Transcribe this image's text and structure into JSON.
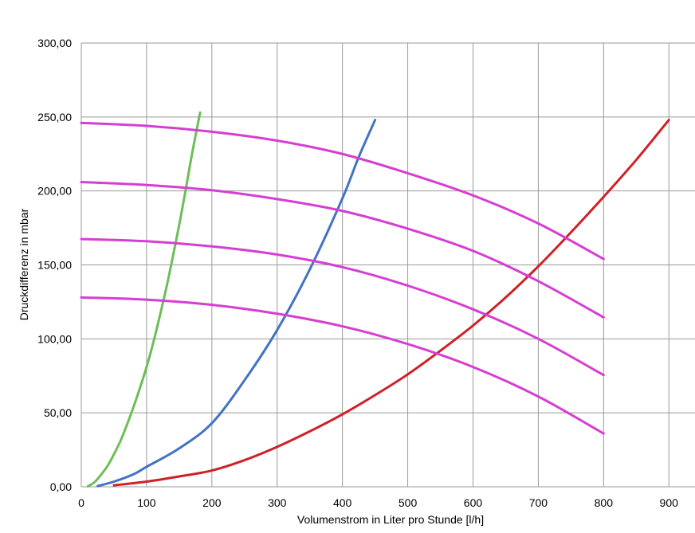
{
  "chart_data": {
    "type": "line",
    "xlabel": "Volumenstrom in Liter pro Stunde [l/h]",
    "ylabel": "Druckdifferenz in mbar",
    "xlim": [
      0,
      940
    ],
    "ylim": [
      0,
      300
    ],
    "xticks": [
      0,
      100,
      200,
      300,
      400,
      500,
      600,
      700,
      800,
      900
    ],
    "xtick_labels": [
      "0",
      "100",
      "200",
      "300",
      "400",
      "500",
      "600",
      "700",
      "800",
      "900"
    ],
    "yticks": [
      0,
      50,
      100,
      150,
      200,
      250,
      300
    ],
    "ytick_labels": [
      "0,00",
      "50,00",
      "100,00",
      "150,00",
      "200,00",
      "250,00",
      "300,00"
    ],
    "grid": true,
    "legend": "none",
    "series": [
      {
        "color": "#6cbe58",
        "x": [
          10,
          20,
          30,
          40,
          50,
          60,
          70,
          80,
          90,
          100,
          110,
          120,
          130,
          140,
          150,
          160,
          170,
          182
        ],
        "y": [
          0.3,
          3.0,
          8.0,
          14.0,
          22.0,
          31.0,
          42.0,
          54.0,
          67.0,
          81.0,
          97.0,
          115.0,
          134.0,
          155.0,
          177.0,
          201.0,
          226.0,
          253.0
        ]
      },
      {
        "color": "#4472c4",
        "x": [
          25,
          50,
          80,
          100,
          150,
          200,
          250,
          300,
          350,
          400,
          425,
          450
        ],
        "y": [
          0.5,
          3.5,
          8.5,
          13.5,
          26.0,
          43.0,
          72.0,
          106.0,
          147.0,
          195.0,
          223.0,
          248.0
        ]
      },
      {
        "color": "#d02027",
        "x": [
          50,
          100,
          150,
          200,
          250,
          300,
          350,
          400,
          450,
          500,
          550,
          600,
          650,
          700,
          750,
          800,
          850,
          900
        ],
        "y": [
          1.0,
          3.5,
          7.0,
          11.0,
          18.0,
          27.0,
          37.5,
          49.0,
          62.0,
          76.0,
          92.0,
          109.0,
          128.0,
          149.0,
          172.0,
          196.0,
          221.0,
          248.0
        ]
      },
      {
        "color": "#d63ed3",
        "x": [
          0,
          100,
          200,
          300,
          400,
          500,
          600,
          700,
          800
        ],
        "y": [
          246.0,
          244.0,
          240.0,
          234.0,
          225.0,
          212.0,
          197.0,
          178.0,
          154.0
        ]
      },
      {
        "color": "#d63ed3",
        "x": [
          0,
          100,
          200,
          300,
          400,
          500,
          600,
          700,
          800
        ],
        "y": [
          206.0,
          204.0,
          200.5,
          194.5,
          186.5,
          174.5,
          159.5,
          139.0,
          114.5
        ]
      },
      {
        "color": "#d63ed3",
        "x": [
          0,
          100,
          200,
          300,
          400,
          500,
          600,
          700,
          800
        ],
        "y": [
          167.5,
          166.0,
          162.5,
          157.0,
          148.5,
          136.0,
          120.0,
          100.0,
          75.5
        ]
      },
      {
        "color": "#d63ed3",
        "x": [
          0,
          100,
          200,
          300,
          400,
          500,
          600,
          700,
          800
        ],
        "y": [
          128.0,
          126.5,
          123.0,
          117.0,
          108.5,
          96.5,
          81.0,
          61.0,
          36.0
        ]
      }
    ]
  }
}
